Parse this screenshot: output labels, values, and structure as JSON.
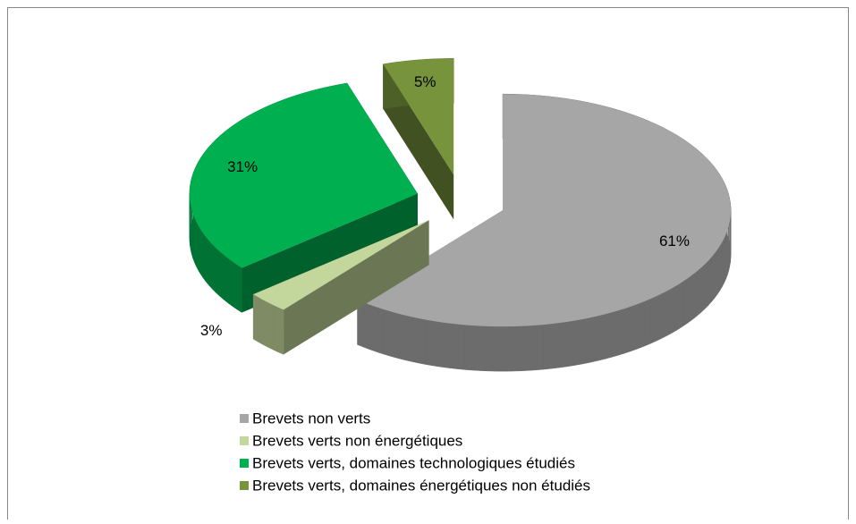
{
  "chart_data": {
    "type": "pie",
    "categories": [
      "Brevets non verts",
      "Brevets verts non énergétiques",
      "Brevets verts, domaines technologiques étudiés",
      "Brevets verts, domaines énergétiques non étudiés"
    ],
    "values": [
      61,
      3,
      31,
      5
    ],
    "value_labels": [
      "61%",
      "3%",
      "31%",
      "5%"
    ],
    "colors": [
      "#a6a6a6",
      "#c3d69b",
      "#00b050",
      "#77933c"
    ],
    "legend": "bottom"
  }
}
